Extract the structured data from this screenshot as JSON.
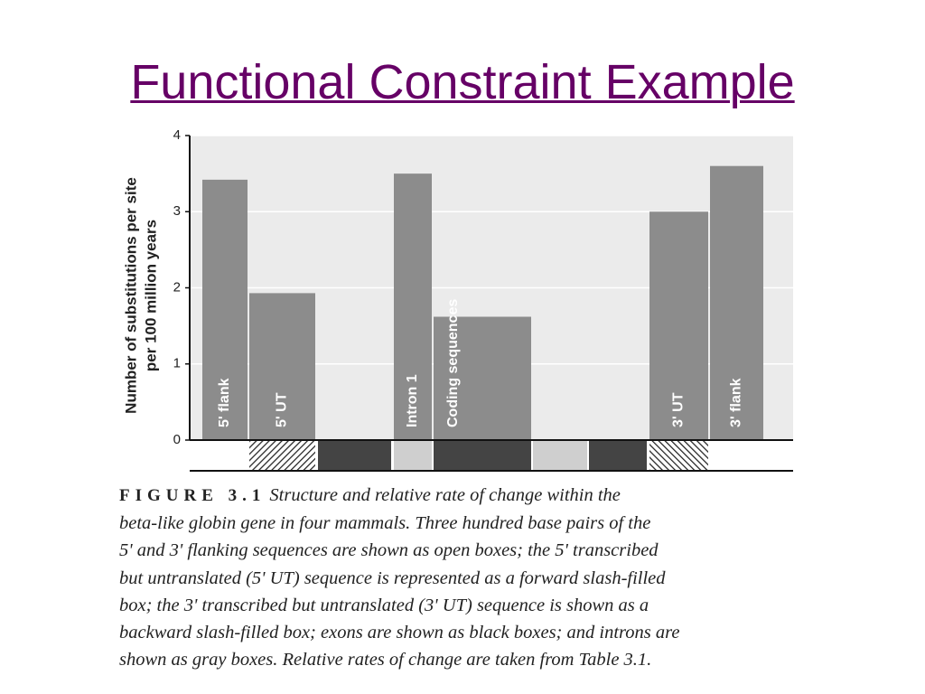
{
  "title": "Functional Constraint Example",
  "chart_data": {
    "type": "bar",
    "y_label": [
      "Number of substitutions per site",
      "per 100 million years"
    ],
    "categories": [
      "5' flank",
      "5' UT",
      "Intron 1",
      "Coding sequences",
      "3' UT",
      "3' flank"
    ],
    "values": [
      3.42,
      1.93,
      3.5,
      1.62,
      3.0,
      3.6
    ],
    "color": "#8c8c8c",
    "ylim": [
      0,
      4
    ],
    "yticks": [
      0,
      1,
      2,
      3,
      4
    ],
    "grid": true
  },
  "caption": {
    "label": "FIGURE 3.1",
    "lines": [
      "Structure and relative rate of change within the",
      "beta-like globin gene in four mammals. Three hundred base pairs of the",
      "5' and 3' flanking sequences are shown as open boxes; the 5' transcribed",
      "but untranslated (5' UT) sequence is represented as a forward slash-filled",
      "box; the 3' transcribed but untranslated (3' UT) sequence is shown as a",
      "backward slash-filled box; exons are shown as black boxes; and introns are",
      "shown as gray boxes. Relative rates of change are taken from Table 3.1."
    ]
  }
}
